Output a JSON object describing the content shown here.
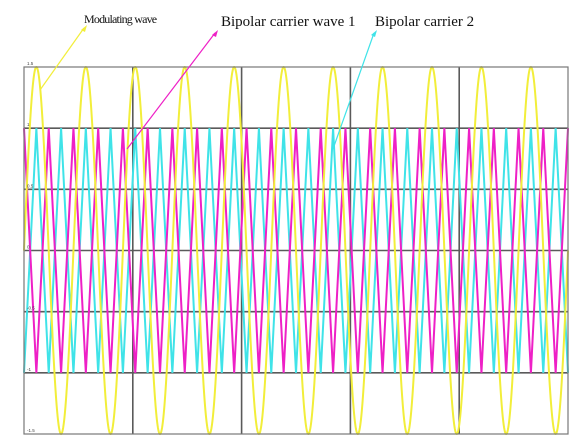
{
  "chart_data": {
    "type": "line",
    "title": "",
    "title_note": "tiny unreadable title text above plot",
    "xlabel": "",
    "ylabel": "",
    "xlim": [
      0,
      1
    ],
    "ylim": [
      -1.5,
      1.5
    ],
    "grid": true,
    "yticks": [
      {
        "value": 1.5,
        "label": "1.5"
      },
      {
        "value": 1.0,
        "label": "1"
      },
      {
        "value": 0.5,
        "label": "0.5"
      },
      {
        "value": 0.0,
        "label": "0"
      },
      {
        "value": -0.5,
        "label": "-0.5"
      },
      {
        "value": -1.0,
        "label": "-1"
      },
      {
        "value": -1.5,
        "label": "-1.5"
      }
    ],
    "x_gridlines": [
      0.2,
      0.4,
      0.6,
      0.8
    ],
    "series": [
      {
        "key": "modulating",
        "kind": "sine",
        "amplitude": 1.5,
        "cycles": 11,
        "phase_start": "zero",
        "color": "#f2ee3a"
      },
      {
        "key": "carrier1",
        "kind": "triangle",
        "min": -1,
        "max": 1,
        "cycles": 22,
        "start": "max",
        "color": "#ee20c6"
      },
      {
        "key": "carrier2",
        "kind": "triangle",
        "min": -1,
        "max": 1,
        "cycles": 22,
        "start": "min",
        "color": "#3fe3e8"
      }
    ],
    "annotations": [
      {
        "label": "Modulating wave",
        "target_series": "modulating",
        "color": "#f2ee3a"
      },
      {
        "label": "Bipolar carrier wave 1",
        "target_series": "carrier1",
        "color": "#ee20c6"
      },
      {
        "label": "Bipolar carrier 2",
        "target_series": "carrier2",
        "color": "#3fe3e8"
      }
    ]
  },
  "colors": {
    "grid": "#5a5a5a",
    "frame": "#777777",
    "background": "#ffffff"
  }
}
